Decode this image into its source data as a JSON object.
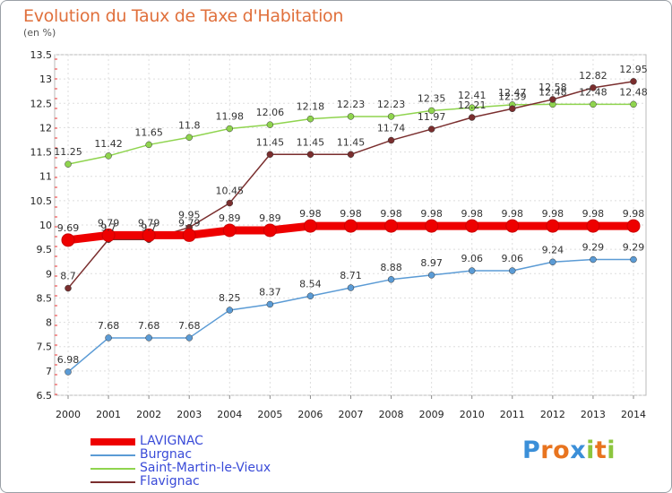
{
  "title": "Evolution du Taux de Taxe d'Habitation",
  "subtitle": "(en %)",
  "logo": {
    "letters": [
      "P",
      "r",
      "o",
      "x",
      "i",
      "t",
      "i"
    ],
    "colors": [
      "#3b8fd8",
      "#e8741f",
      "#e8741f",
      "#3b8fd8",
      "#8cc63e",
      "#e8741f",
      "#8cc63e"
    ]
  },
  "chart_data": {
    "type": "line",
    "x": [
      2000,
      2001,
      2002,
      2003,
      2004,
      2005,
      2006,
      2007,
      2008,
      2009,
      2010,
      2011,
      2012,
      2013,
      2014
    ],
    "ylim": [
      6.5,
      13.5
    ],
    "yticks": [
      "6.5",
      "7",
      "7.5",
      "8",
      "8.5",
      "9",
      "9.5",
      "10",
      "10.5",
      "11",
      "11.5",
      "12",
      "12.5",
      "13",
      "13.5"
    ],
    "grid": true,
    "legend_position": "bottom-left",
    "series": [
      {
        "name": "LAVIGNAC",
        "color": "#ee0000",
        "highlight": true,
        "values": [
          9.69,
          9.79,
          9.79,
          9.79,
          9.89,
          9.89,
          9.98,
          9.98,
          9.98,
          9.98,
          9.98,
          9.98,
          9.98,
          9.98,
          9.98
        ],
        "labels": [
          "9.69",
          "9.79",
          "9.79",
          "9.79",
          "9.89",
          "9.89",
          "9.98",
          "9.98",
          "9.98",
          "9.98",
          "9.98",
          "9.98",
          "9.98",
          "9.98",
          "9.98"
        ]
      },
      {
        "name": "Burgnac",
        "color": "#5b9bd5",
        "values": [
          6.98,
          7.68,
          7.68,
          7.68,
          8.25,
          8.37,
          8.54,
          8.71,
          8.88,
          8.97,
          9.06,
          9.06,
          9.24,
          9.29,
          9.29
        ],
        "labels": [
          "6.98",
          "7.68",
          "7.68",
          "7.68",
          "8.25",
          "8.37",
          "8.54",
          "8.71",
          "8.88",
          "8.97",
          "9.06",
          "9.06",
          "9.24",
          "9.29",
          "9.29"
        ]
      },
      {
        "name": "Saint-Martin-le-Vieux",
        "color": "#8fd44e",
        "values": [
          11.25,
          11.42,
          11.65,
          11.8,
          11.98,
          12.06,
          12.18,
          12.23,
          12.23,
          12.35,
          12.41,
          12.47,
          12.48,
          12.48,
          12.48
        ],
        "labels": [
          "11.25",
          "11.42",
          "11.65",
          "11.8",
          "11.98",
          "12.06",
          "12.18",
          "12.23",
          "12.23",
          "12.35",
          "12.41",
          "12.47",
          "12.48",
          "12.48",
          "12.48"
        ]
      },
      {
        "name": "Flavignac",
        "color": "#7a2e2e",
        "values": [
          8.7,
          9.7,
          9.7,
          9.95,
          10.45,
          11.45,
          11.45,
          11.45,
          11.74,
          11.97,
          12.21,
          12.39,
          12.58,
          12.82,
          12.95
        ],
        "labels": [
          "8.7",
          "9.7",
          "9.7",
          "9.95",
          "10.45",
          "11.45",
          "11.45",
          "11.45",
          "11.74",
          "11.97",
          "12.21",
          "12.39",
          "12.58",
          "12.82",
          "12.95"
        ]
      }
    ]
  }
}
